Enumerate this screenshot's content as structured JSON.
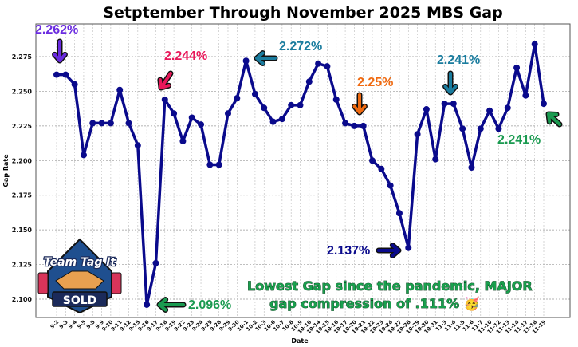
{
  "chart_data": {
    "type": "line",
    "title": "Setptember Through November 2025 MBS Gap",
    "xlabel": "Date",
    "ylabel": "Gap Rate",
    "ylim": [
      2.09,
      2.29
    ],
    "yticks": [
      "2.100",
      "2.125",
      "2.150",
      "2.175",
      "2.200",
      "2.225",
      "2.250",
      "2.275"
    ],
    "grid": true,
    "categories": [
      "9-2",
      "9-3",
      "9-4",
      "9-5",
      "9-8",
      "9-9",
      "9-10",
      "9-11",
      "9-12",
      "9-15",
      "9-16",
      "9-17",
      "9-18",
      "9-19",
      "9-22",
      "9-23",
      "9-24",
      "9-25",
      "9-26",
      "9-29",
      "9-30",
      "10-1",
      "10-2",
      "10-3",
      "10-6",
      "10-7",
      "10-8",
      "10-9",
      "10-10",
      "10-14",
      "10-15",
      "10-16",
      "10-17",
      "10-20",
      "10-21",
      "10-22",
      "10-23",
      "10-24",
      "10-27",
      "10-28",
      "10-29",
      "10-30",
      "10-31",
      "11-3",
      "11-4",
      "11-5",
      "11-6",
      "11-7",
      "11-10",
      "11-12",
      "11-13",
      "11-14",
      "11-17",
      "11-18",
      "11-19"
    ],
    "series": [
      {
        "name": "Gap Rate",
        "color": "#0a0a8c",
        "values": [
          2.262,
          2.262,
          2.255,
          2.204,
          2.227,
          2.227,
          2.227,
          2.251,
          2.227,
          2.211,
          2.096,
          2.126,
          2.244,
          2.234,
          2.214,
          2.231,
          2.226,
          2.197,
          2.197,
          2.234,
          2.245,
          2.272,
          2.248,
          2.238,
          2.228,
          2.23,
          2.24,
          2.24,
          2.257,
          2.27,
          2.268,
          2.244,
          2.227,
          2.225,
          2.225,
          2.2,
          2.194,
          2.182,
          2.162,
          2.137,
          2.219,
          2.237,
          2.201,
          2.241,
          2.241,
          2.223,
          2.195,
          2.223,
          2.236,
          2.223,
          2.238,
          2.267,
          2.247,
          2.284,
          2.241
        ]
      }
    ],
    "annotations": [
      {
        "text": "2.262%",
        "color": "#6a2be0"
      },
      {
        "text": "2.244%",
        "color": "#e8185a"
      },
      {
        "text": "2.272%",
        "color": "#1a7c9e"
      },
      {
        "text": "2.25%",
        "color": "#f06a10"
      },
      {
        "text": "2.241%",
        "color": "#1a7c9e"
      },
      {
        "text": "2.241%",
        "color": "#1a9a50"
      },
      {
        "text": "2.096%",
        "color": "#1a9a50"
      },
      {
        "text": "2.137%",
        "color": "#0a0a8c"
      }
    ],
    "note_line1": "Lowest Gap since the pandemic, MAJOR",
    "note_line2": "gap compression of .111% 🥳"
  },
  "logo": {
    "line1": "Team Tag It",
    "line2": "SOLD"
  }
}
